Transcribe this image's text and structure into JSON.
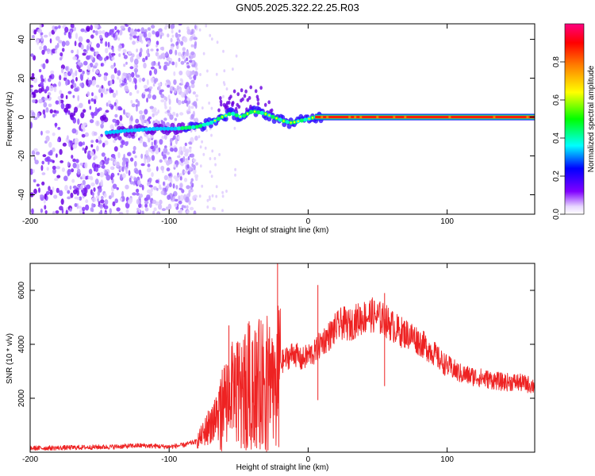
{
  "title": "GN05.2025.322.22.25.R03",
  "chart_data": [
    {
      "type": "heatmap",
      "title": "GN05.2025.322.22.25.R03",
      "xlabel": "Height of straight line (km)",
      "ylabel": "Frequency (Hz)",
      "xlim": [
        -200,
        163
      ],
      "ylim": [
        -50,
        48
      ],
      "x_ticks": [
        -200,
        -100,
        0,
        100
      ],
      "x_tick_labels": [
        "-200",
        "-100",
        "0",
        "100"
      ],
      "y_ticks": [
        40,
        20,
        0,
        -20,
        -40
      ],
      "y_tick_labels": [
        "40",
        "20",
        "0",
        "-20",
        "-40"
      ],
      "colorbar": {
        "label": "Normalized spectral amplitude",
        "range": [
          0,
          1
        ],
        "ticks": [
          "0.0",
          "0.2",
          "0.4",
          "0.6",
          "0.8"
        ],
        "tick_values": [
          0.0,
          0.2,
          0.4,
          0.6,
          0.8
        ],
        "colors": [
          "#e8d8ff",
          "#8000ff",
          "#0000ff",
          "#00ffff",
          "#00ff00",
          "#ffff00",
          "#ff8000",
          "#ff0000",
          "#ff0080"
        ]
      },
      "features": [
        {
          "name": "broadband noise",
          "x_range": [
            -200,
            -80
          ],
          "freq_range": [
            -50,
            48
          ],
          "amplitude": 0.1
        },
        {
          "name": "signal trace",
          "points": [
            [
              -145,
              -8
            ],
            [
              -130,
              -7
            ],
            [
              -110,
              -6
            ],
            [
              -95,
              -6
            ],
            [
              -80,
              -5
            ],
            [
              -70,
              -3
            ],
            [
              -62,
              0
            ],
            [
              -55,
              2
            ],
            [
              -48,
              0
            ],
            [
              -40,
              3
            ],
            [
              -32,
              2
            ],
            [
              -25,
              0
            ],
            [
              -18,
              -2
            ],
            [
              -12,
              -3
            ],
            [
              -6,
              -2
            ],
            [
              0,
              -1
            ],
            [
              5,
              0
            ],
            [
              10,
              0
            ],
            [
              163,
              0
            ]
          ]
        },
        {
          "name": "steady carrier",
          "x_range": [
            5,
            163
          ],
          "freq": 0,
          "amplitude": 0.95
        }
      ]
    },
    {
      "type": "line",
      "xlabel": "Height of straight line (km)",
      "ylabel": "SNR (10 * v/v)",
      "xlim": [
        -200,
        163
      ],
      "ylim": [
        0,
        7000
      ],
      "x_ticks": [
        -200,
        -100,
        0,
        100
      ],
      "x_tick_labels": [
        "-200",
        "-100",
        "0",
        "100"
      ],
      "y_ticks": [
        2000,
        4000,
        6000
      ],
      "y_tick_labels": [
        "2000",
        "4000",
        "6000"
      ],
      "series": [
        {
          "name": "SNR",
          "color": "#ee2222",
          "x": [
            -200,
            -180,
            -160,
            -140,
            -120,
            -100,
            -90,
            -80,
            -75,
            -70,
            -65,
            -60,
            -55,
            -50,
            -45,
            -40,
            -35,
            -30,
            -25,
            -20,
            -15,
            -10,
            -5,
            0,
            5,
            10,
            15,
            20,
            25,
            30,
            35,
            40,
            45,
            50,
            55,
            60,
            65,
            70,
            75,
            80,
            85,
            90,
            95,
            100,
            110,
            120,
            130,
            140,
            150,
            160,
            163
          ],
          "y": [
            150,
            160,
            180,
            200,
            250,
            200,
            260,
            400,
            700,
            1100,
            1500,
            2100,
            2400,
            2600,
            2800,
            3000,
            2900,
            3000,
            3100,
            3300,
            3500,
            3700,
            3400,
            3600,
            3700,
            4100,
            4300,
            4600,
            4800,
            4700,
            4900,
            5000,
            5100,
            5000,
            4900,
            4700,
            4500,
            4400,
            4300,
            4100,
            3900,
            3700,
            3400,
            3200,
            2900,
            2800,
            2700,
            2600,
            2600,
            2500,
            2450
          ]
        }
      ],
      "spikes": [
        {
          "x": -22,
          "y": 7000
        },
        {
          "x": -42,
          "y": 4700
        },
        {
          "x": -57,
          "y": 4700
        },
        {
          "x": 7,
          "y": 6200
        },
        {
          "x": 55,
          "y": 5900
        }
      ]
    }
  ]
}
